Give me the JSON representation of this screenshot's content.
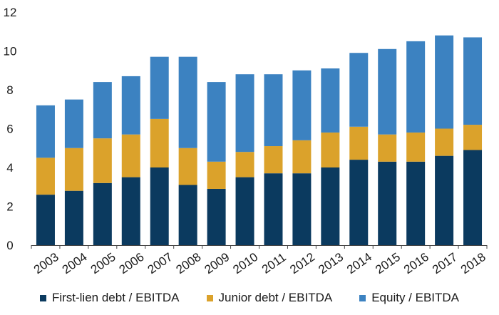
{
  "chart_data": {
    "type": "bar",
    "stacked": true,
    "categories": [
      "2003",
      "2004",
      "2005",
      "2006",
      "2007",
      "2008",
      "2009",
      "2010",
      "2011",
      "2012",
      "2013",
      "2014",
      "2015",
      "2016",
      "2017",
      "2018"
    ],
    "series": [
      {
        "name": "First-lien debt / EBITDA",
        "color": "#0b3a5f",
        "values": [
          2.6,
          2.8,
          3.2,
          3.5,
          4.0,
          3.1,
          2.9,
          3.5,
          3.7,
          3.7,
          4.0,
          4.4,
          4.3,
          4.3,
          4.6,
          4.9
        ]
      },
      {
        "name": "Junior debt / EBITDA",
        "color": "#dba22b",
        "values": [
          1.9,
          2.2,
          2.3,
          2.2,
          2.5,
          1.9,
          1.4,
          1.3,
          1.4,
          1.7,
          1.8,
          1.7,
          1.4,
          1.5,
          1.4,
          1.3
        ]
      },
      {
        "name": "Equity / EBITDA",
        "color": "#3c82c1",
        "values": [
          2.7,
          2.5,
          2.9,
          3.0,
          3.2,
          4.7,
          4.1,
          4.0,
          3.7,
          3.6,
          3.3,
          3.8,
          4.4,
          4.7,
          4.8,
          4.5
        ]
      }
    ],
    "ylim": [
      0,
      12
    ],
    "yticks": [
      0,
      2,
      4,
      6,
      8,
      10,
      12
    ],
    "grid": false,
    "legend_position": "bottom",
    "title": "",
    "xlabel": "",
    "ylabel": ""
  }
}
